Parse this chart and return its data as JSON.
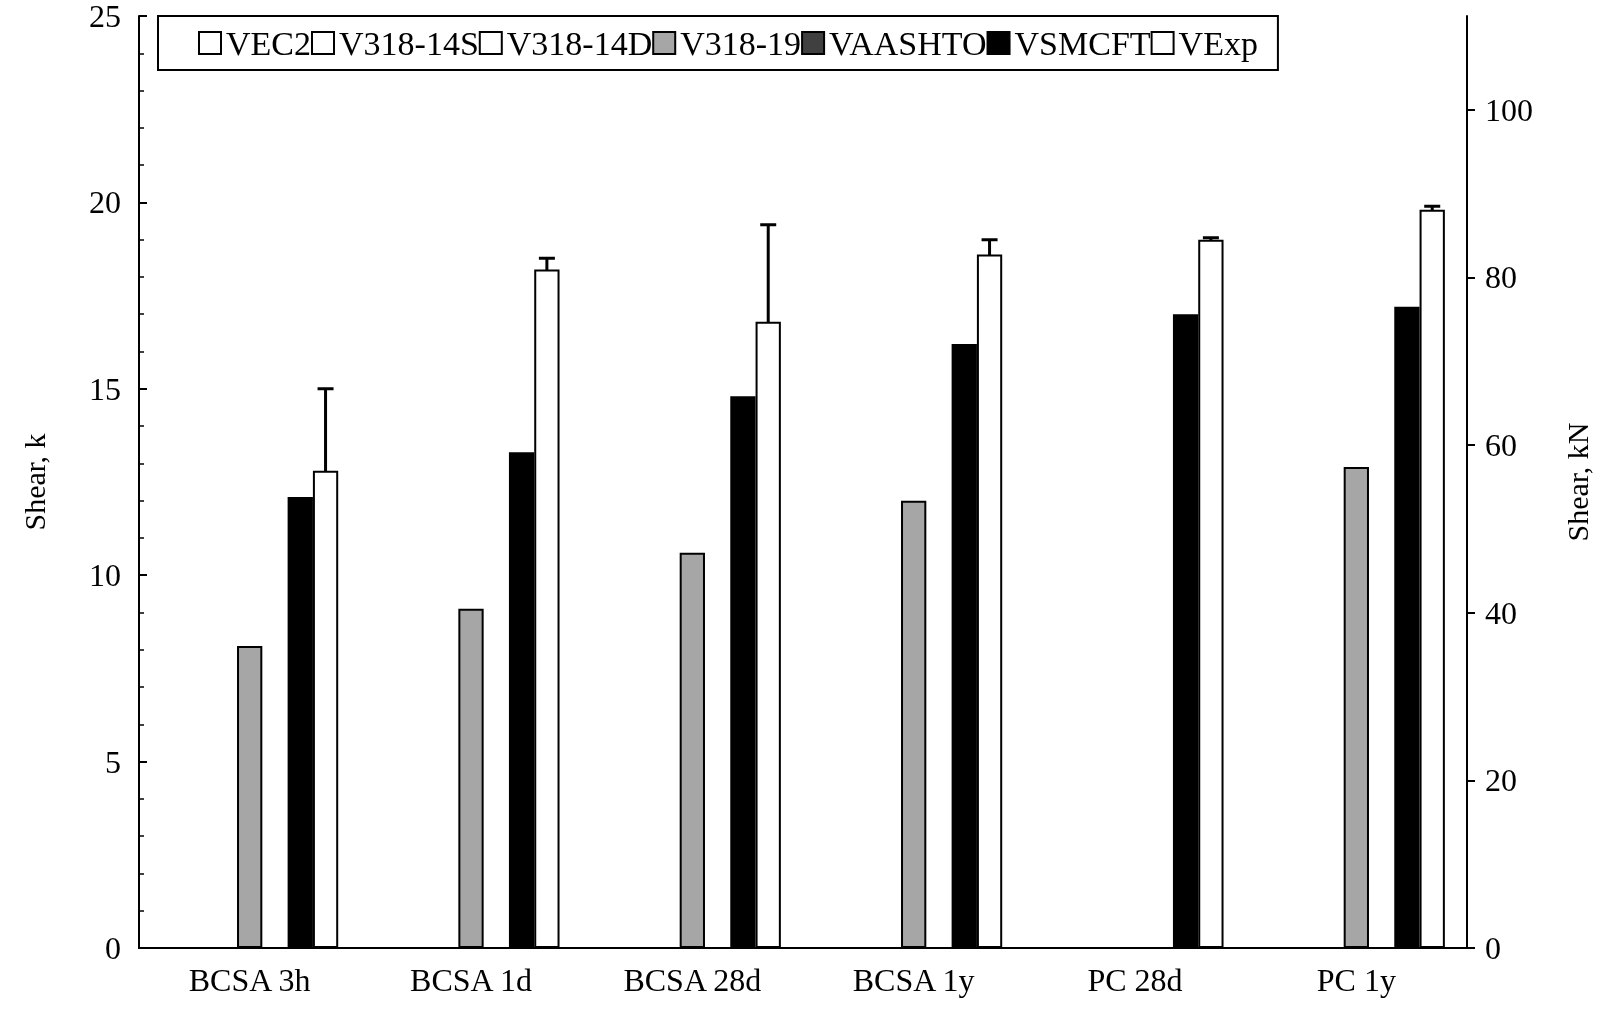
{
  "chart_data": {
    "type": "bar",
    "ylabel": "Shear, k",
    "y2label": "Shear, kN",
    "categories": [
      "BCSA 3h",
      "BCSA 1d",
      "BCSA 28d",
      "BCSA 1y",
      "PC 28d",
      "PC 1y"
    ],
    "series": [
      {
        "name": "VEC2",
        "color": "#ffffff",
        "values": [
          null,
          null,
          null,
          null,
          null,
          null
        ]
      },
      {
        "name": "V318-14S",
        "color": "#ffffff",
        "values": [
          null,
          null,
          null,
          null,
          null,
          null
        ]
      },
      {
        "name": "V318-14D",
        "color": "#ffffff",
        "values": [
          null,
          null,
          null,
          null,
          null,
          null
        ]
      },
      {
        "name": "V318-19",
        "color": "#a6a6a6",
        "values": [
          8.1,
          9.1,
          10.6,
          12.0,
          null,
          12.9
        ]
      },
      {
        "name": "VAASHTO",
        "color": "#404040",
        "values": [
          null,
          null,
          null,
          null,
          null,
          null
        ]
      },
      {
        "name": "VSMCFT",
        "color": "#000000",
        "values": [
          12.1,
          13.3,
          14.8,
          16.2,
          17.0,
          17.2
        ]
      },
      {
        "name": "VExp",
        "color": "#ffffff",
        "values": [
          12.8,
          18.2,
          16.8,
          18.6,
          19.0,
          19.8
        ],
        "errors": [
          2.2,
          0.3,
          2.6,
          0.4,
          0.05,
          0.1
        ]
      }
    ],
    "ylim": [
      0,
      25
    ],
    "yticks": [
      0,
      5,
      10,
      15,
      20,
      25
    ],
    "y2lim": [
      0,
      111.2
    ],
    "y2ticks": [
      0,
      20,
      40,
      60,
      80,
      100
    ],
    "grid": false,
    "legend": "top"
  }
}
